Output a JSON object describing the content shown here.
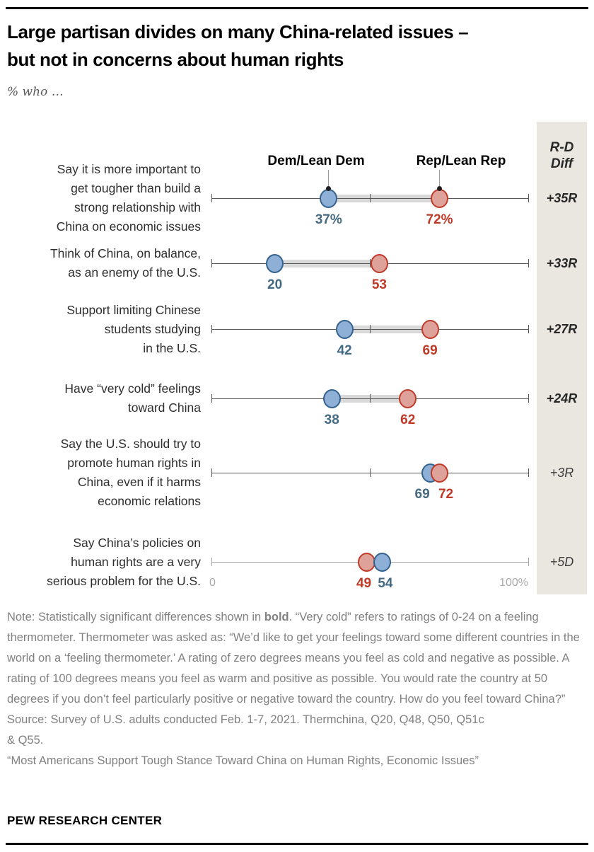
{
  "header": {
    "title_lines": [
      "Large partisan divides on many China-related issues –",
      "but not in concerns about human rights"
    ],
    "subtitle": "% who …"
  },
  "legend": {
    "dem_label": "Dem/Lean Dem",
    "rep_label": "Rep/Lean Rep"
  },
  "diff_column": {
    "header_lines": [
      "R-D",
      "Diff"
    ]
  },
  "colors": {
    "dem_fill": "#8fb0d6",
    "dem_stroke": "#33628e",
    "dem_text": "#436983",
    "rep_fill": "#dfa29b",
    "rep_stroke": "#bf3a28",
    "rep_text": "#bf3927",
    "band": "#d9d9d9",
    "axis": "#58585a",
    "axis_light": "#a4a4a4",
    "panel_bg": "#e9e7e0"
  },
  "chart_data": {
    "type": "dumbbell",
    "title": "Large partisan divides on many China-related issues – but not in concerns about human rights",
    "subtitle": "% who …",
    "x_axis": {
      "min": 0,
      "max": 100,
      "min_label": "0",
      "max_label": "100%",
      "mid_tick": 50
    },
    "series": [
      "Dem/Lean Dem",
      "Rep/Lean Rep"
    ],
    "legend_position": "top, anchored to first row dots",
    "rows": [
      {
        "label_lines": [
          "Say it is more important to",
          "get tougher than build a",
          "strong relationship with",
          "China on economic issues"
        ],
        "dem": 37,
        "rep": 72,
        "dem_label": "37%",
        "rep_label": "72%",
        "diff": "+35R",
        "significant": true
      },
      {
        "label_lines": [
          "Think of China, on balance,",
          "as an enemy of the U.S."
        ],
        "dem": 20,
        "rep": 53,
        "dem_label": "20",
        "rep_label": "53",
        "diff": "+33R",
        "significant": true
      },
      {
        "label_lines": [
          "Support limiting Chinese",
          "students studying",
          "in the U.S."
        ],
        "dem": 42,
        "rep": 69,
        "dem_label": "42",
        "rep_label": "69",
        "diff": "+27R",
        "significant": true
      },
      {
        "label_lines": [
          "Have “very cold” feelings",
          "toward China"
        ],
        "dem": 38,
        "rep": 62,
        "dem_label": "38",
        "rep_label": "62",
        "diff": "+24R",
        "significant": true
      },
      {
        "label_lines": [
          "Say the U.S. should try to",
          "promote human rights in",
          "China, even if it harms",
          "economic relations"
        ],
        "dem": 69,
        "rep": 72,
        "dem_label": "69",
        "rep_label": "72",
        "diff": "+3R",
        "significant": false,
        "dem_dx": -11,
        "rep_dx": 9
      },
      {
        "label_lines": [
          "Say China’s policies on",
          "human rights are a very",
          "serious problem for the U.S."
        ],
        "dem": 54,
        "rep": 49,
        "dem_label": "54",
        "rep_label": "49",
        "diff": "+5D",
        "significant": false,
        "dem_dx": 4,
        "rep_dx": -4,
        "light_axis": true
      }
    ]
  },
  "note": {
    "prefix": "Note: Statistically significant differences shown in ",
    "bold_word": "bold",
    "suffix": ". “Very cold” refers to ratings of 0-24 on a feeling thermometer. Thermometer was asked as: “We’d like to get your feelings toward some different countries in the world on a ‘feeling thermometer.’ A rating of zero degrees means you feel as cold and negative as possible. A rating of 100 degrees means you feel as warm and positive as possible. You would rate the country at 50 degrees if you don’t feel particularly positive or negative toward the country. How do you feel toward China?”",
    "source_lines": [
      "Source: Survey of U.S. adults conducted Feb. 1-7, 2021. Thermchina, Q20, Q48, Q50, Q51c",
      "& Q55."
    ],
    "report": "“Most Americans Support Tough Stance Toward China on Human Rights, Economic Issues”"
  },
  "footer": {
    "brand": "PEW RESEARCH CENTER"
  }
}
